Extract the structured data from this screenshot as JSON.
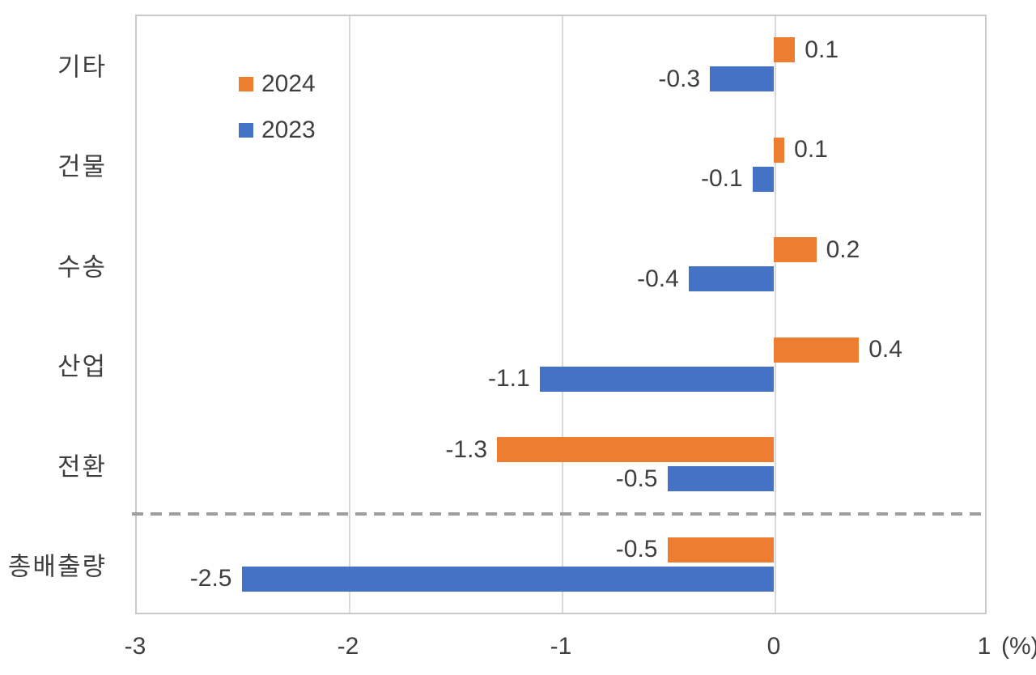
{
  "chart_data": {
    "type": "bar",
    "orientation": "horizontal",
    "title": "",
    "categories": [
      "기타",
      "건물",
      "수송",
      "산업",
      "전환",
      "총배출량"
    ],
    "series": [
      {
        "name": "2024",
        "color": "#ED7D31",
        "values": [
          0.1,
          0.05,
          0.2,
          0.4,
          -1.3,
          -0.5
        ],
        "labels": [
          "0.1",
          "0.1",
          "0.2",
          "0.4",
          "-1.3",
          "-0.5"
        ]
      },
      {
        "name": "2023",
        "color": "#4472C4",
        "values": [
          -0.3,
          -0.1,
          -0.4,
          -1.1,
          -0.5,
          -2.5
        ],
        "labels": [
          "-0.3",
          "-0.1",
          "-0.4",
          "-1.1",
          "-0.5",
          "-2.5"
        ]
      }
    ],
    "xlim": [
      -3,
      1
    ],
    "x_ticks": [
      -3,
      -2,
      -1,
      0,
      1
    ],
    "x_tick_labels": [
      "-3",
      "-2",
      "-1",
      "0",
      "1"
    ],
    "axis_unit": "(%)",
    "separator_after_category_index": 4,
    "legend_position": "inside-top-left",
    "grid": "vertical",
    "colors": {
      "series_2024": "#ED7D31",
      "series_2023": "#4472C4",
      "gridline": "#D9D9D9",
      "plot_border": "#C9C9C9",
      "separator_dash": "#9E9E9E",
      "text": "#3F3F3F"
    }
  }
}
